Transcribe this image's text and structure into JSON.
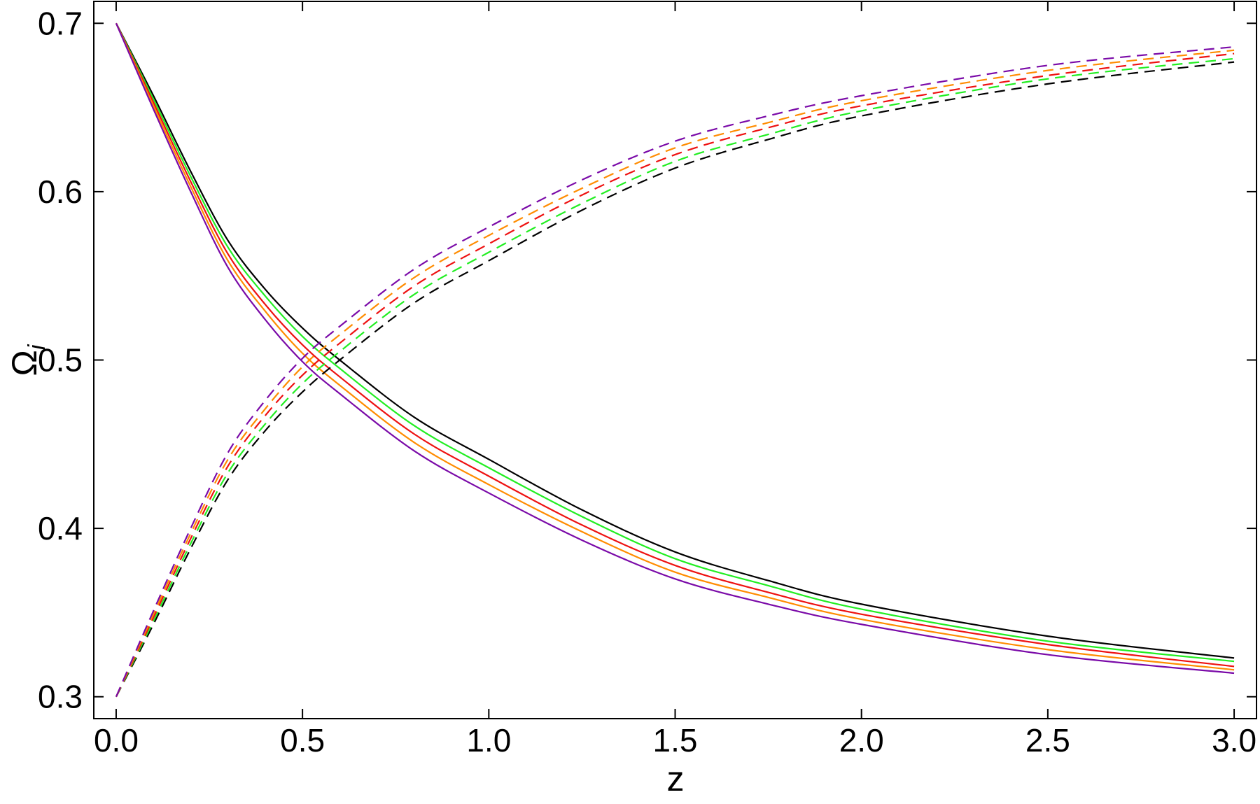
{
  "chart_data": {
    "type": "line",
    "xlabel": "z",
    "ylabel": "Ω",
    "ylabel_subscript": "i",
    "x": [
      0,
      0.1,
      0.2,
      0.3,
      0.4,
      0.5,
      0.6,
      0.8,
      1.0,
      1.25,
      1.5,
      1.75,
      2.0,
      2.5,
      3.0
    ],
    "xlim": [
      -0.06,
      3.06
    ],
    "ylim": [
      0.287,
      0.713
    ],
    "xticks": [
      {
        "value": 0,
        "label": "0.0"
      },
      0.5,
      {
        "value": 1,
        "label": "1.0"
      },
      1.5,
      {
        "value": 2,
        "label": "2.0"
      },
      2.5,
      {
        "value": 3,
        "label": "3.0"
      }
    ],
    "yticks": [
      0.3,
      0.4,
      0.5,
      0.6,
      0.7
    ],
    "series": [
      {
        "color": "#000000",
        "dashed": false,
        "values": [
          0.7,
          0.657,
          0.612,
          0.571,
          0.542,
          0.519,
          0.5,
          0.466,
          0.441,
          0.411,
          0.386,
          0.369,
          0.355,
          0.336,
          0.323
        ]
      },
      {
        "color": "#22ee22",
        "dashed": false,
        "values": [
          0.7,
          0.655,
          0.609,
          0.567,
          0.538,
          0.514,
          0.495,
          0.461,
          0.436,
          0.407,
          0.382,
          0.366,
          0.352,
          0.333,
          0.321
        ]
      },
      {
        "color": "#ee1111",
        "dashed": false,
        "values": [
          0.7,
          0.653,
          0.606,
          0.563,
          0.533,
          0.509,
          0.49,
          0.456,
          0.431,
          0.402,
          0.378,
          0.362,
          0.349,
          0.331,
          0.318
        ]
      },
      {
        "color": "#ff8c00",
        "dashed": false,
        "values": [
          0.7,
          0.651,
          0.603,
          0.559,
          0.529,
          0.504,
          0.485,
          0.451,
          0.426,
          0.398,
          0.374,
          0.359,
          0.346,
          0.328,
          0.316
        ]
      },
      {
        "color": "#7a0aa8",
        "dashed": false,
        "values": [
          0.7,
          0.649,
          0.6,
          0.555,
          0.524,
          0.499,
          0.48,
          0.446,
          0.421,
          0.393,
          0.37,
          0.355,
          0.343,
          0.325,
          0.314
        ]
      },
      {
        "color": "#000000",
        "dashed": true,
        "values": [
          0.3,
          0.343,
          0.388,
          0.429,
          0.458,
          0.481,
          0.5,
          0.534,
          0.559,
          0.589,
          0.614,
          0.631,
          0.645,
          0.664,
          0.677
        ]
      },
      {
        "color": "#22ee22",
        "dashed": true,
        "values": [
          0.3,
          0.345,
          0.391,
          0.433,
          0.462,
          0.486,
          0.505,
          0.539,
          0.564,
          0.593,
          0.618,
          0.634,
          0.648,
          0.667,
          0.679
        ]
      },
      {
        "color": "#ee1111",
        "dashed": true,
        "values": [
          0.3,
          0.347,
          0.394,
          0.437,
          0.467,
          0.491,
          0.51,
          0.544,
          0.569,
          0.598,
          0.622,
          0.638,
          0.651,
          0.669,
          0.682
        ]
      },
      {
        "color": "#ff8c00",
        "dashed": true,
        "values": [
          0.3,
          0.349,
          0.397,
          0.441,
          0.471,
          0.496,
          0.515,
          0.549,
          0.574,
          0.602,
          0.626,
          0.641,
          0.654,
          0.672,
          0.684
        ]
      },
      {
        "color": "#7a0aa8",
        "dashed": true,
        "values": [
          0.3,
          0.351,
          0.4,
          0.445,
          0.476,
          0.501,
          0.52,
          0.554,
          0.579,
          0.607,
          0.63,
          0.645,
          0.657,
          0.675,
          0.686
        ]
      }
    ]
  }
}
